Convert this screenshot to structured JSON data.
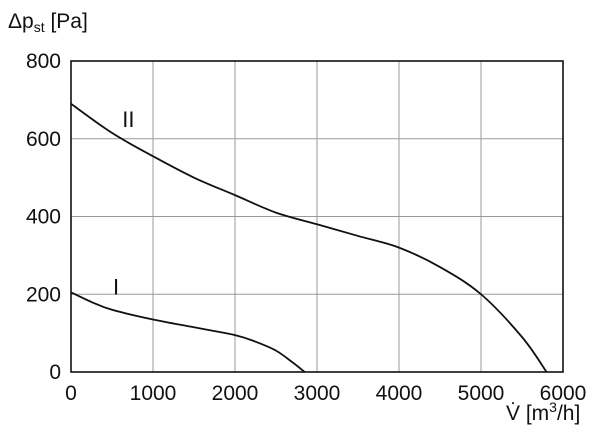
{
  "chart_data": {
    "type": "line",
    "ylabel": {
      "prefix": "Δp",
      "sub": "st",
      "suffix": " [Pa]"
    },
    "xlabel": {
      "prefix": "V̇ [m",
      "sup": "3",
      "suffix": "/h]"
    },
    "xlim": [
      0,
      6000
    ],
    "ylim": [
      0,
      800
    ],
    "x_ticks": [
      0,
      1000,
      2000,
      3000,
      4000,
      5000,
      6000
    ],
    "y_ticks": [
      0,
      200,
      400,
      600,
      800
    ],
    "x_tick_labels": [
      "0",
      "1000",
      "2000",
      "3000",
      "4000",
      "5000",
      "6000"
    ],
    "y_tick_labels": [
      "0",
      "200",
      "400",
      "600",
      "800"
    ],
    "grid": true,
    "series": [
      {
        "name": "I",
        "x": [
          0,
          250,
          500,
          1000,
          1500,
          2000,
          2250,
          2500,
          2700,
          2850
        ],
        "y": [
          205,
          180,
          160,
          135,
          115,
          95,
          78,
          55,
          25,
          0
        ]
      },
      {
        "name": "II",
        "x": [
          0,
          500,
          1000,
          1500,
          2000,
          2500,
          3000,
          3500,
          4000,
          4500,
          5000,
          5500,
          5800
        ],
        "y": [
          690,
          615,
          555,
          500,
          455,
          410,
          380,
          350,
          320,
          270,
          200,
          90,
          0
        ]
      }
    ],
    "curve_labels": [
      {
        "text": "II",
        "x": 700,
        "y": 630
      },
      {
        "text": "I",
        "x": 550,
        "y": 200
      }
    ]
  },
  "colors": {
    "line": "#111111",
    "grid": "#9a9a9a",
    "frame": "#111111"
  }
}
